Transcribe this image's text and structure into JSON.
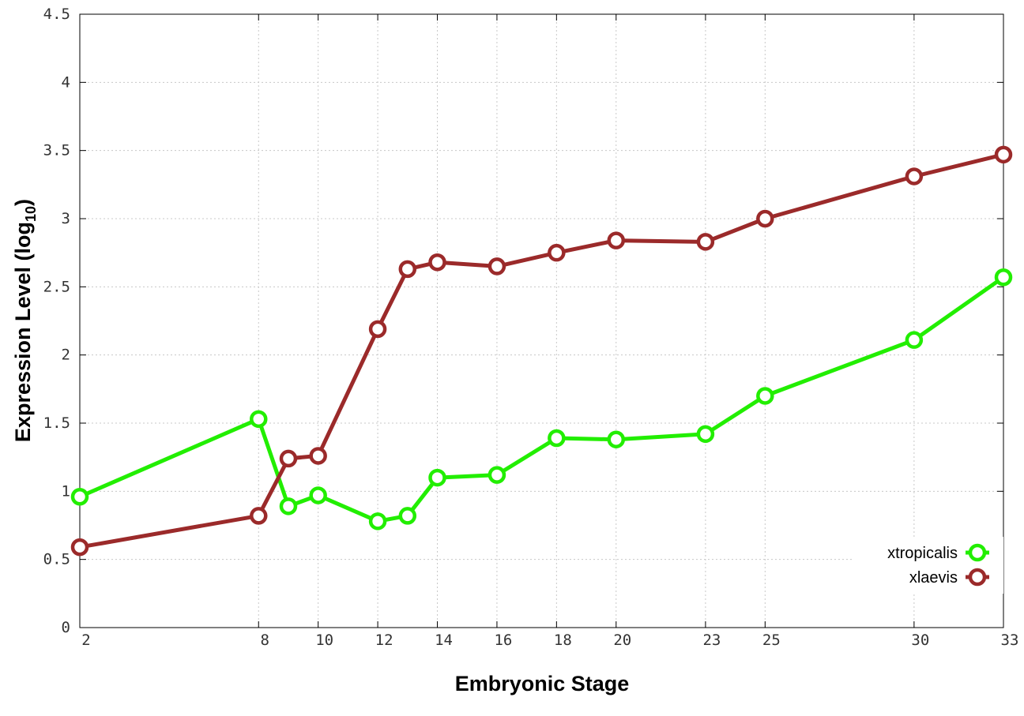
{
  "chart_data": {
    "type": "line",
    "xlabel": "Embryonic Stage",
    "ylabel_main": "Expression Level (log",
    "ylabel_sub": "10",
    "ylabel_close": ")",
    "xlim": [
      2,
      33
    ],
    "ylim": [
      0,
      4.5
    ],
    "x_ticks": [
      "2",
      "8",
      "10",
      "12",
      "14",
      "16",
      "18",
      "20",
      "23",
      "25",
      "30",
      "33"
    ],
    "y_ticks": [
      "0",
      "0.5",
      "1",
      "1.5",
      "2",
      "2.5",
      "3",
      "3.5",
      "4",
      "4.5"
    ],
    "x": [
      2,
      8,
      9,
      10,
      12,
      13,
      14,
      16,
      18,
      20,
      23,
      25,
      30,
      33
    ],
    "grid": true,
    "legend_position": "bottom-right",
    "series": [
      {
        "name": "xtropicalis",
        "color": "#22ee00",
        "values": [
          0.96,
          1.53,
          0.89,
          0.97,
          0.78,
          0.82,
          1.1,
          1.12,
          1.39,
          1.38,
          1.42,
          1.7,
          2.11,
          2.57
        ]
      },
      {
        "name": "xlaevis",
        "color": "#9b2a2a",
        "values": [
          0.59,
          0.82,
          1.24,
          1.26,
          2.19,
          2.63,
          2.68,
          2.65,
          2.75,
          2.84,
          2.83,
          3.0,
          3.31,
          3.47
        ]
      }
    ]
  }
}
